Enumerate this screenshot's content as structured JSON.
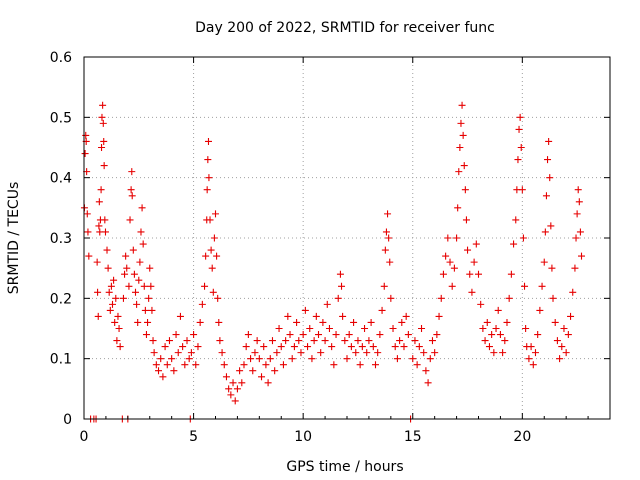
{
  "chart_data": {
    "type": "scatter",
    "title": "Day 200 of 2022, SRMTID for receiver func",
    "xlabel": "GPS time / hours",
    "ylabel": "SRMTID / TECUs",
    "xlim": [
      0,
      24
    ],
    "ylim": [
      0,
      0.6
    ],
    "xticks": [
      0,
      5,
      10,
      15,
      20
    ],
    "xtick_labels": [
      "0",
      "5",
      "10",
      "15",
      "20"
    ],
    "yticks": [
      0,
      0.1,
      0.2,
      0.3,
      0.4,
      0.5,
      0.6
    ],
    "ytick_labels": [
      "0",
      "0.1",
      "0.2",
      "0.3",
      "0.4",
      "0.5",
      "0.6"
    ],
    "grid": true,
    "marker": "+",
    "color": "#e60000",
    "series": [
      {
        "name": "SRMTID",
        "points": [
          [
            0.02,
            0.35
          ],
          [
            0.05,
            0.44
          ],
          [
            0.08,
            0.47
          ],
          [
            0.1,
            0.46
          ],
          [
            0.12,
            0.41
          ],
          [
            0.15,
            0.34
          ],
          [
            0.18,
            0.31
          ],
          [
            0.22,
            0.27
          ],
          [
            0.3,
            0.0
          ],
          [
            0.45,
            0.0
          ],
          [
            0.55,
            0.0
          ],
          [
            0.6,
            0.26
          ],
          [
            0.62,
            0.21
          ],
          [
            0.65,
            0.17
          ],
          [
            0.68,
            0.32
          ],
          [
            0.7,
            0.36
          ],
          [
            0.72,
            0.31
          ],
          [
            0.75,
            0.33
          ],
          [
            0.78,
            0.38
          ],
          [
            0.8,
            0.45
          ],
          [
            0.82,
            0.5
          ],
          [
            0.85,
            0.52
          ],
          [
            0.88,
            0.49
          ],
          [
            0.9,
            0.46
          ],
          [
            0.92,
            0.42
          ],
          [
            0.95,
            0.33
          ],
          [
            0.98,
            0.31
          ],
          [
            1.05,
            0.28
          ],
          [
            1.1,
            0.25
          ],
          [
            1.15,
            0.21
          ],
          [
            1.2,
            0.18
          ],
          [
            1.25,
            0.22
          ],
          [
            1.3,
            0.19
          ],
          [
            1.35,
            0.23
          ],
          [
            1.4,
            0.16
          ],
          [
            1.45,
            0.2
          ],
          [
            1.5,
            0.13
          ],
          [
            1.55,
            0.17
          ],
          [
            1.6,
            0.15
          ],
          [
            1.65,
            0.12
          ],
          [
            1.75,
            0.0
          ],
          [
            1.8,
            0.2
          ],
          [
            1.85,
            0.24
          ],
          [
            1.9,
            0.27
          ],
          [
            1.95,
            0.25
          ],
          [
            2.0,
            0.0
          ],
          [
            2.05,
            0.22
          ],
          [
            2.1,
            0.33
          ],
          [
            2.15,
            0.38
          ],
          [
            2.18,
            0.41
          ],
          [
            2.2,
            0.37
          ],
          [
            2.25,
            0.28
          ],
          [
            2.3,
            0.24
          ],
          [
            2.35,
            0.21
          ],
          [
            2.4,
            0.19
          ],
          [
            2.45,
            0.16
          ],
          [
            2.5,
            0.23
          ],
          [
            2.55,
            0.26
          ],
          [
            2.6,
            0.31
          ],
          [
            2.65,
            0.35
          ],
          [
            2.7,
            0.29
          ],
          [
            2.75,
            0.22
          ],
          [
            2.8,
            0.18
          ],
          [
            2.85,
            0.14
          ],
          [
            2.9,
            0.16
          ],
          [
            2.95,
            0.2
          ],
          [
            3.0,
            0.25
          ],
          [
            3.05,
            0.22
          ],
          [
            3.1,
            0.18
          ],
          [
            3.15,
            0.13
          ],
          [
            3.2,
            0.11
          ],
          [
            3.3,
            0.09
          ],
          [
            3.4,
            0.08
          ],
          [
            3.5,
            0.1
          ],
          [
            3.6,
            0.07
          ],
          [
            3.7,
            0.12
          ],
          [
            3.8,
            0.09
          ],
          [
            3.9,
            0.13
          ],
          [
            4.0,
            0.1
          ],
          [
            4.1,
            0.08
          ],
          [
            4.2,
            0.14
          ],
          [
            4.3,
            0.11
          ],
          [
            4.4,
            0.17
          ],
          [
            4.5,
            0.12
          ],
          [
            4.6,
            0.09
          ],
          [
            4.7,
            0.13
          ],
          [
            4.8,
            0.1
          ],
          [
            4.85,
            0.0
          ],
          [
            4.9,
            0.11
          ],
          [
            5.0,
            0.14
          ],
          [
            5.1,
            0.09
          ],
          [
            5.2,
            0.12
          ],
          [
            5.3,
            0.16
          ],
          [
            5.4,
            0.19
          ],
          [
            5.5,
            0.22
          ],
          [
            5.55,
            0.27
          ],
          [
            5.6,
            0.33
          ],
          [
            5.62,
            0.38
          ],
          [
            5.65,
            0.43
          ],
          [
            5.68,
            0.46
          ],
          [
            5.7,
            0.4
          ],
          [
            5.75,
            0.33
          ],
          [
            5.8,
            0.28
          ],
          [
            5.85,
            0.25
          ],
          [
            5.9,
            0.21
          ],
          [
            5.95,
            0.3
          ],
          [
            6.0,
            0.34
          ],
          [
            6.05,
            0.27
          ],
          [
            6.1,
            0.2
          ],
          [
            6.15,
            0.16
          ],
          [
            6.2,
            0.13
          ],
          [
            6.3,
            0.11
          ],
          [
            6.4,
            0.09
          ],
          [
            6.5,
            0.07
          ],
          [
            6.6,
            0.05
          ],
          [
            6.7,
            0.04
          ],
          [
            6.8,
            0.06
          ],
          [
            6.9,
            0.03
          ],
          [
            7.0,
            0.05
          ],
          [
            7.1,
            0.08
          ],
          [
            7.2,
            0.06
          ],
          [
            7.3,
            0.09
          ],
          [
            7.4,
            0.12
          ],
          [
            7.5,
            0.14
          ],
          [
            7.6,
            0.1
          ],
          [
            7.7,
            0.08
          ],
          [
            7.8,
            0.11
          ],
          [
            7.9,
            0.13
          ],
          [
            8.0,
            0.1
          ],
          [
            8.1,
            0.07
          ],
          [
            8.2,
            0.12
          ],
          [
            8.3,
            0.09
          ],
          [
            8.4,
            0.06
          ],
          [
            8.5,
            0.1
          ],
          [
            8.6,
            0.13
          ],
          [
            8.7,
            0.08
          ],
          [
            8.8,
            0.11
          ],
          [
            8.9,
            0.15
          ],
          [
            9.0,
            0.12
          ],
          [
            9.1,
            0.09
          ],
          [
            9.2,
            0.13
          ],
          [
            9.3,
            0.17
          ],
          [
            9.4,
            0.14
          ],
          [
            9.5,
            0.1
          ],
          [
            9.6,
            0.12
          ],
          [
            9.7,
            0.16
          ],
          [
            9.8,
            0.13
          ],
          [
            9.9,
            0.11
          ],
          [
            10.0,
            0.14
          ],
          [
            10.1,
            0.18
          ],
          [
            10.2,
            0.12
          ],
          [
            10.3,
            0.15
          ],
          [
            10.4,
            0.1
          ],
          [
            10.5,
            0.13
          ],
          [
            10.6,
            0.17
          ],
          [
            10.7,
            0.14
          ],
          [
            10.8,
            0.11
          ],
          [
            10.9,
            0.16
          ],
          [
            11.0,
            0.13
          ],
          [
            11.1,
            0.19
          ],
          [
            11.2,
            0.15
          ],
          [
            11.3,
            0.12
          ],
          [
            11.4,
            0.09
          ],
          [
            11.5,
            0.14
          ],
          [
            11.6,
            0.2
          ],
          [
            11.7,
            0.24
          ],
          [
            11.75,
            0.22
          ],
          [
            11.8,
            0.17
          ],
          [
            11.9,
            0.13
          ],
          [
            12.0,
            0.1
          ],
          [
            12.1,
            0.14
          ],
          [
            12.2,
            0.12
          ],
          [
            12.3,
            0.16
          ],
          [
            12.4,
            0.11
          ],
          [
            12.5,
            0.13
          ],
          [
            12.6,
            0.09
          ],
          [
            12.7,
            0.12
          ],
          [
            12.8,
            0.15
          ],
          [
            12.9,
            0.11
          ],
          [
            13.0,
            0.13
          ],
          [
            13.1,
            0.16
          ],
          [
            13.2,
            0.12
          ],
          [
            13.3,
            0.09
          ],
          [
            13.4,
            0.11
          ],
          [
            13.5,
            0.14
          ],
          [
            13.6,
            0.18
          ],
          [
            13.7,
            0.22
          ],
          [
            13.75,
            0.28
          ],
          [
            13.8,
            0.31
          ],
          [
            13.85,
            0.34
          ],
          [
            13.9,
            0.3
          ],
          [
            13.95,
            0.26
          ],
          [
            14.0,
            0.2
          ],
          [
            14.1,
            0.15
          ],
          [
            14.2,
            0.12
          ],
          [
            14.3,
            0.1
          ],
          [
            14.4,
            0.13
          ],
          [
            14.5,
            0.16
          ],
          [
            14.6,
            0.12
          ],
          [
            14.7,
            0.17
          ],
          [
            14.8,
            0.14
          ],
          [
            14.9,
            0.0
          ],
          [
            15.0,
            0.1
          ],
          [
            15.1,
            0.13
          ],
          [
            15.2,
            0.09
          ],
          [
            15.3,
            0.12
          ],
          [
            15.4,
            0.15
          ],
          [
            15.5,
            0.11
          ],
          [
            15.6,
            0.08
          ],
          [
            15.7,
            0.06
          ],
          [
            15.8,
            0.1
          ],
          [
            15.9,
            0.13
          ],
          [
            16.0,
            0.11
          ],
          [
            16.1,
            0.14
          ],
          [
            16.2,
            0.17
          ],
          [
            16.3,
            0.2
          ],
          [
            16.4,
            0.24
          ],
          [
            16.5,
            0.27
          ],
          [
            16.6,
            0.3
          ],
          [
            16.7,
            0.26
          ],
          [
            16.8,
            0.22
          ],
          [
            16.9,
            0.25
          ],
          [
            17.0,
            0.3
          ],
          [
            17.05,
            0.35
          ],
          [
            17.1,
            0.41
          ],
          [
            17.15,
            0.45
          ],
          [
            17.2,
            0.49
          ],
          [
            17.25,
            0.52
          ],
          [
            17.3,
            0.47
          ],
          [
            17.35,
            0.42
          ],
          [
            17.4,
            0.38
          ],
          [
            17.45,
            0.33
          ],
          [
            17.5,
            0.28
          ],
          [
            17.6,
            0.24
          ],
          [
            17.7,
            0.21
          ],
          [
            17.8,
            0.26
          ],
          [
            17.9,
            0.29
          ],
          [
            18.0,
            0.24
          ],
          [
            18.1,
            0.19
          ],
          [
            18.2,
            0.15
          ],
          [
            18.3,
            0.13
          ],
          [
            18.4,
            0.16
          ],
          [
            18.5,
            0.12
          ],
          [
            18.6,
            0.14
          ],
          [
            18.7,
            0.11
          ],
          [
            18.8,
            0.15
          ],
          [
            18.9,
            0.18
          ],
          [
            19.0,
            0.14
          ],
          [
            19.1,
            0.11
          ],
          [
            19.2,
            0.13
          ],
          [
            19.3,
            0.16
          ],
          [
            19.4,
            0.2
          ],
          [
            19.5,
            0.24
          ],
          [
            19.6,
            0.29
          ],
          [
            19.7,
            0.33
          ],
          [
            19.75,
            0.38
          ],
          [
            19.8,
            0.43
          ],
          [
            19.85,
            0.48
          ],
          [
            19.9,
            0.5
          ],
          [
            19.95,
            0.45
          ],
          [
            20.0,
            0.38
          ],
          [
            20.05,
            0.3
          ],
          [
            20.1,
            0.22
          ],
          [
            20.15,
            0.15
          ],
          [
            20.2,
            0.12
          ],
          [
            20.3,
            0.1
          ],
          [
            20.4,
            0.12
          ],
          [
            20.5,
            0.09
          ],
          [
            20.6,
            0.11
          ],
          [
            20.7,
            0.14
          ],
          [
            20.8,
            0.18
          ],
          [
            20.9,
            0.22
          ],
          [
            21.0,
            0.26
          ],
          [
            21.05,
            0.31
          ],
          [
            21.1,
            0.37
          ],
          [
            21.15,
            0.43
          ],
          [
            21.2,
            0.46
          ],
          [
            21.25,
            0.4
          ],
          [
            21.3,
            0.32
          ],
          [
            21.35,
            0.25
          ],
          [
            21.4,
            0.2
          ],
          [
            21.5,
            0.16
          ],
          [
            21.6,
            0.13
          ],
          [
            21.7,
            0.1
          ],
          [
            21.8,
            0.12
          ],
          [
            21.9,
            0.15
          ],
          [
            22.0,
            0.11
          ],
          [
            22.1,
            0.14
          ],
          [
            22.2,
            0.17
          ],
          [
            22.3,
            0.21
          ],
          [
            22.4,
            0.25
          ],
          [
            22.45,
            0.3
          ],
          [
            22.5,
            0.34
          ],
          [
            22.55,
            0.38
          ],
          [
            22.6,
            0.36
          ],
          [
            22.65,
            0.31
          ],
          [
            22.7,
            0.27
          ]
        ]
      }
    ]
  }
}
